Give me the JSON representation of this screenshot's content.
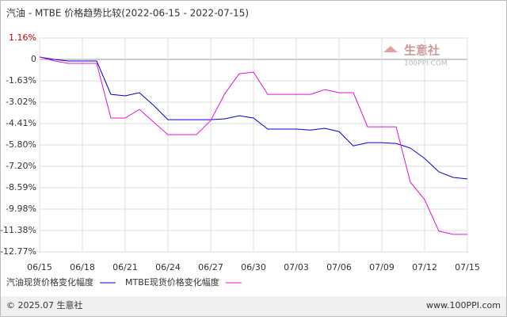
{
  "chart_data": {
    "type": "line",
    "title": "汽油 - MTBE 价格趋势比较(2022-06-15 - 2022-07-15)",
    "categories": [
      "06/15",
      null,
      null,
      "06/18",
      null,
      null,
      "06/21",
      null,
      null,
      "06/24",
      null,
      null,
      "06/27",
      null,
      null,
      "06/30",
      null,
      null,
      "07/03",
      null,
      null,
      "07/06",
      null,
      null,
      "07/09",
      null,
      null,
      "07/12",
      null,
      null,
      "07/15"
    ],
    "series": [
      {
        "name": "汽油现货价格变化幅度",
        "color": "#0000cc",
        "values": [
          0.13,
          0,
          -0.12,
          -0.12,
          -0.12,
          -2.51,
          -2.61,
          -2.4,
          -3.23,
          -4.16,
          -4.16,
          -4.16,
          -4.16,
          -4.1,
          -3.9,
          -4.05,
          -4.77,
          -4.77,
          -4.77,
          -4.83,
          -4.72,
          -4.93,
          -5.86,
          -5.65,
          -5.65,
          -5.7,
          -6.0,
          -6.68,
          -7.56,
          -7.92,
          -8.02
        ]
      },
      {
        "name": "MTBE现货价格变化幅度",
        "color": "#e010e0",
        "values": [
          0.13,
          -0.1,
          -0.3,
          -0.3,
          -0.3,
          -4.05,
          -4.05,
          -3.49,
          -4.31,
          -5.13,
          -5.13,
          -5.13,
          -4.21,
          -2.45,
          -1.09,
          -0.97,
          -2.51,
          -2.51,
          -2.51,
          -2.51,
          -2.2,
          -2.4,
          -2.4,
          -4.62,
          -4.62,
          -4.62,
          -8.23,
          -9.36,
          -11.42,
          -11.63,
          -11.63
        ]
      }
    ],
    "ylim": [
      -12.77,
      1.16
    ],
    "yticks": [
      {
        "value": 1.16,
        "label": "1.16%"
      },
      0,
      {
        "value": -1.63,
        "label": "-1.63%"
      },
      {
        "value": -3.02,
        "label": "-3.02%"
      },
      {
        "value": -4.41,
        "label": "-4.41%"
      },
      {
        "value": -5.8,
        "label": "-5.80%"
      },
      {
        "value": -7.2,
        "label": "-7.20%"
      },
      {
        "value": -8.59,
        "label": "-8.59%"
      },
      {
        "value": -9.98,
        "label": "-9.98%"
      },
      {
        "value": -11.38,
        "label": "-11.38%"
      },
      {
        "value": -12.77,
        "label": "-12.77%"
      }
    ],
    "grid": true
  },
  "watermark": {
    "name": "生意社",
    "site": "100PPI.COM"
  },
  "footer": {
    "left": "© 2025.07 生意社",
    "right": "www.100PPI.com"
  }
}
